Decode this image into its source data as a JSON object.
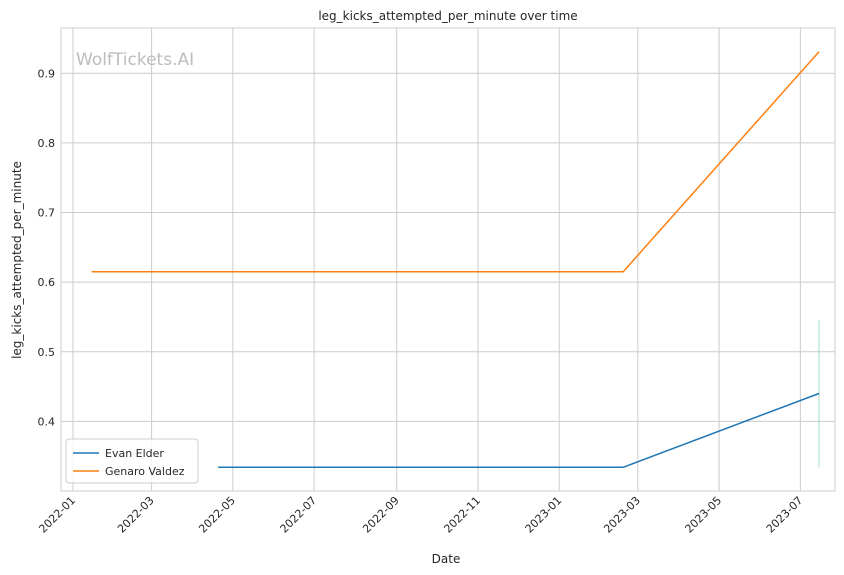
{
  "watermark": "WolfTickets.AI",
  "chart_data": {
    "type": "line",
    "title": "leg_kicks_attempted_per_minute over time",
    "xlabel": "Date",
    "ylabel": "leg_kicks_attempted_per_minute",
    "x_ticks": [
      "2022-01",
      "2022-03",
      "2022-05",
      "2022-07",
      "2022-09",
      "2022-11",
      "2023-01",
      "2023-03",
      "2023-05",
      "2023-07"
    ],
    "y_ticks": [
      0.4,
      0.5,
      0.6,
      0.7,
      0.8,
      0.9
    ],
    "ylim": [
      0.3,
      0.965
    ],
    "xlim": [
      "2021-12-23",
      "2023-07-27"
    ],
    "grid": true,
    "legend_position": "lower-left",
    "series": [
      {
        "name": "Evan Elder",
        "color": "#1f77b4",
        "points": [
          {
            "x": "2022-04-20",
            "y": 0.334
          },
          {
            "x": "2023-02-18",
            "y": 0.334
          },
          {
            "x": "2023-07-15",
            "y": 0.44
          }
        ]
      },
      {
        "name": "Genaro Valdez",
        "color": "#ff7f0e",
        "points": [
          {
            "x": "2022-01-15",
            "y": 0.615
          },
          {
            "x": "2023-02-18",
            "y": 0.615
          },
          {
            "x": "2023-07-15",
            "y": 0.931
          }
        ]
      }
    ],
    "error_bar": {
      "x": "2023-07-15",
      "y_low": 0.334,
      "y_high": 0.546,
      "color": "#a8d8c8"
    }
  }
}
